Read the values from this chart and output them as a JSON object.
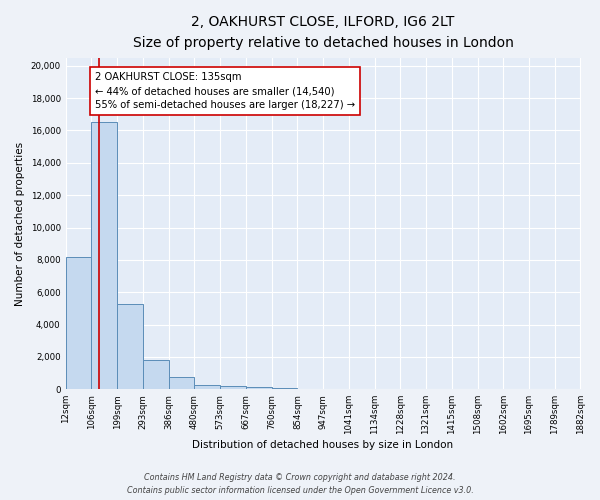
{
  "title_line1": "2, OAKHURST CLOSE, ILFORD, IG6 2LT",
  "title_line2": "Size of property relative to detached houses in London",
  "xlabel": "Distribution of detached houses by size in London",
  "ylabel": "Number of detached properties",
  "bar_edges": [
    12,
    106,
    199,
    293,
    386,
    480,
    573,
    667,
    760,
    854,
    947,
    1041,
    1134,
    1228,
    1321,
    1415,
    1508,
    1602,
    1695,
    1789,
    1882
  ],
  "bar_heights": [
    8200,
    16500,
    5300,
    1800,
    780,
    290,
    190,
    110,
    90,
    0,
    0,
    0,
    0,
    0,
    0,
    0,
    0,
    0,
    0,
    0
  ],
  "bar_color": "#c5d9ef",
  "bar_edge_color": "#5b8db8",
  "bar_linewidth": 0.7,
  "vline_x": 135,
  "vline_color": "#cc0000",
  "vline_linewidth": 1.2,
  "annotation_line1": "2 OAKHURST CLOSE: 135sqm",
  "annotation_line2": "← 44% of detached houses are smaller (14,540)",
  "annotation_line3": "55% of semi-detached houses are larger (18,227) →",
  "ylim": [
    0,
    20500
  ],
  "yticks": [
    0,
    2000,
    4000,
    6000,
    8000,
    10000,
    12000,
    14000,
    16000,
    18000,
    20000
  ],
  "x_tick_labels": [
    "12sqm",
    "106sqm",
    "199sqm",
    "293sqm",
    "386sqm",
    "480sqm",
    "573sqm",
    "667sqm",
    "760sqm",
    "854sqm",
    "947sqm",
    "1041sqm",
    "1134sqm",
    "1228sqm",
    "1321sqm",
    "1415sqm",
    "1508sqm",
    "1602sqm",
    "1695sqm",
    "1789sqm",
    "1882sqm"
  ],
  "footer_line1": "Contains HM Land Registry data © Crown copyright and database right 2024.",
  "footer_line2": "Contains public sector information licensed under the Open Government Licence v3.0.",
  "bg_color": "#eef2f8",
  "plot_bg_color": "#e4ecf7",
  "grid_color": "#ffffff",
  "title_fontsize": 10,
  "subtitle_fontsize": 8.5,
  "axis_label_fontsize": 7.5,
  "tick_fontsize": 6.2,
  "annotation_fontsize": 7.2,
  "footer_fontsize": 5.8
}
